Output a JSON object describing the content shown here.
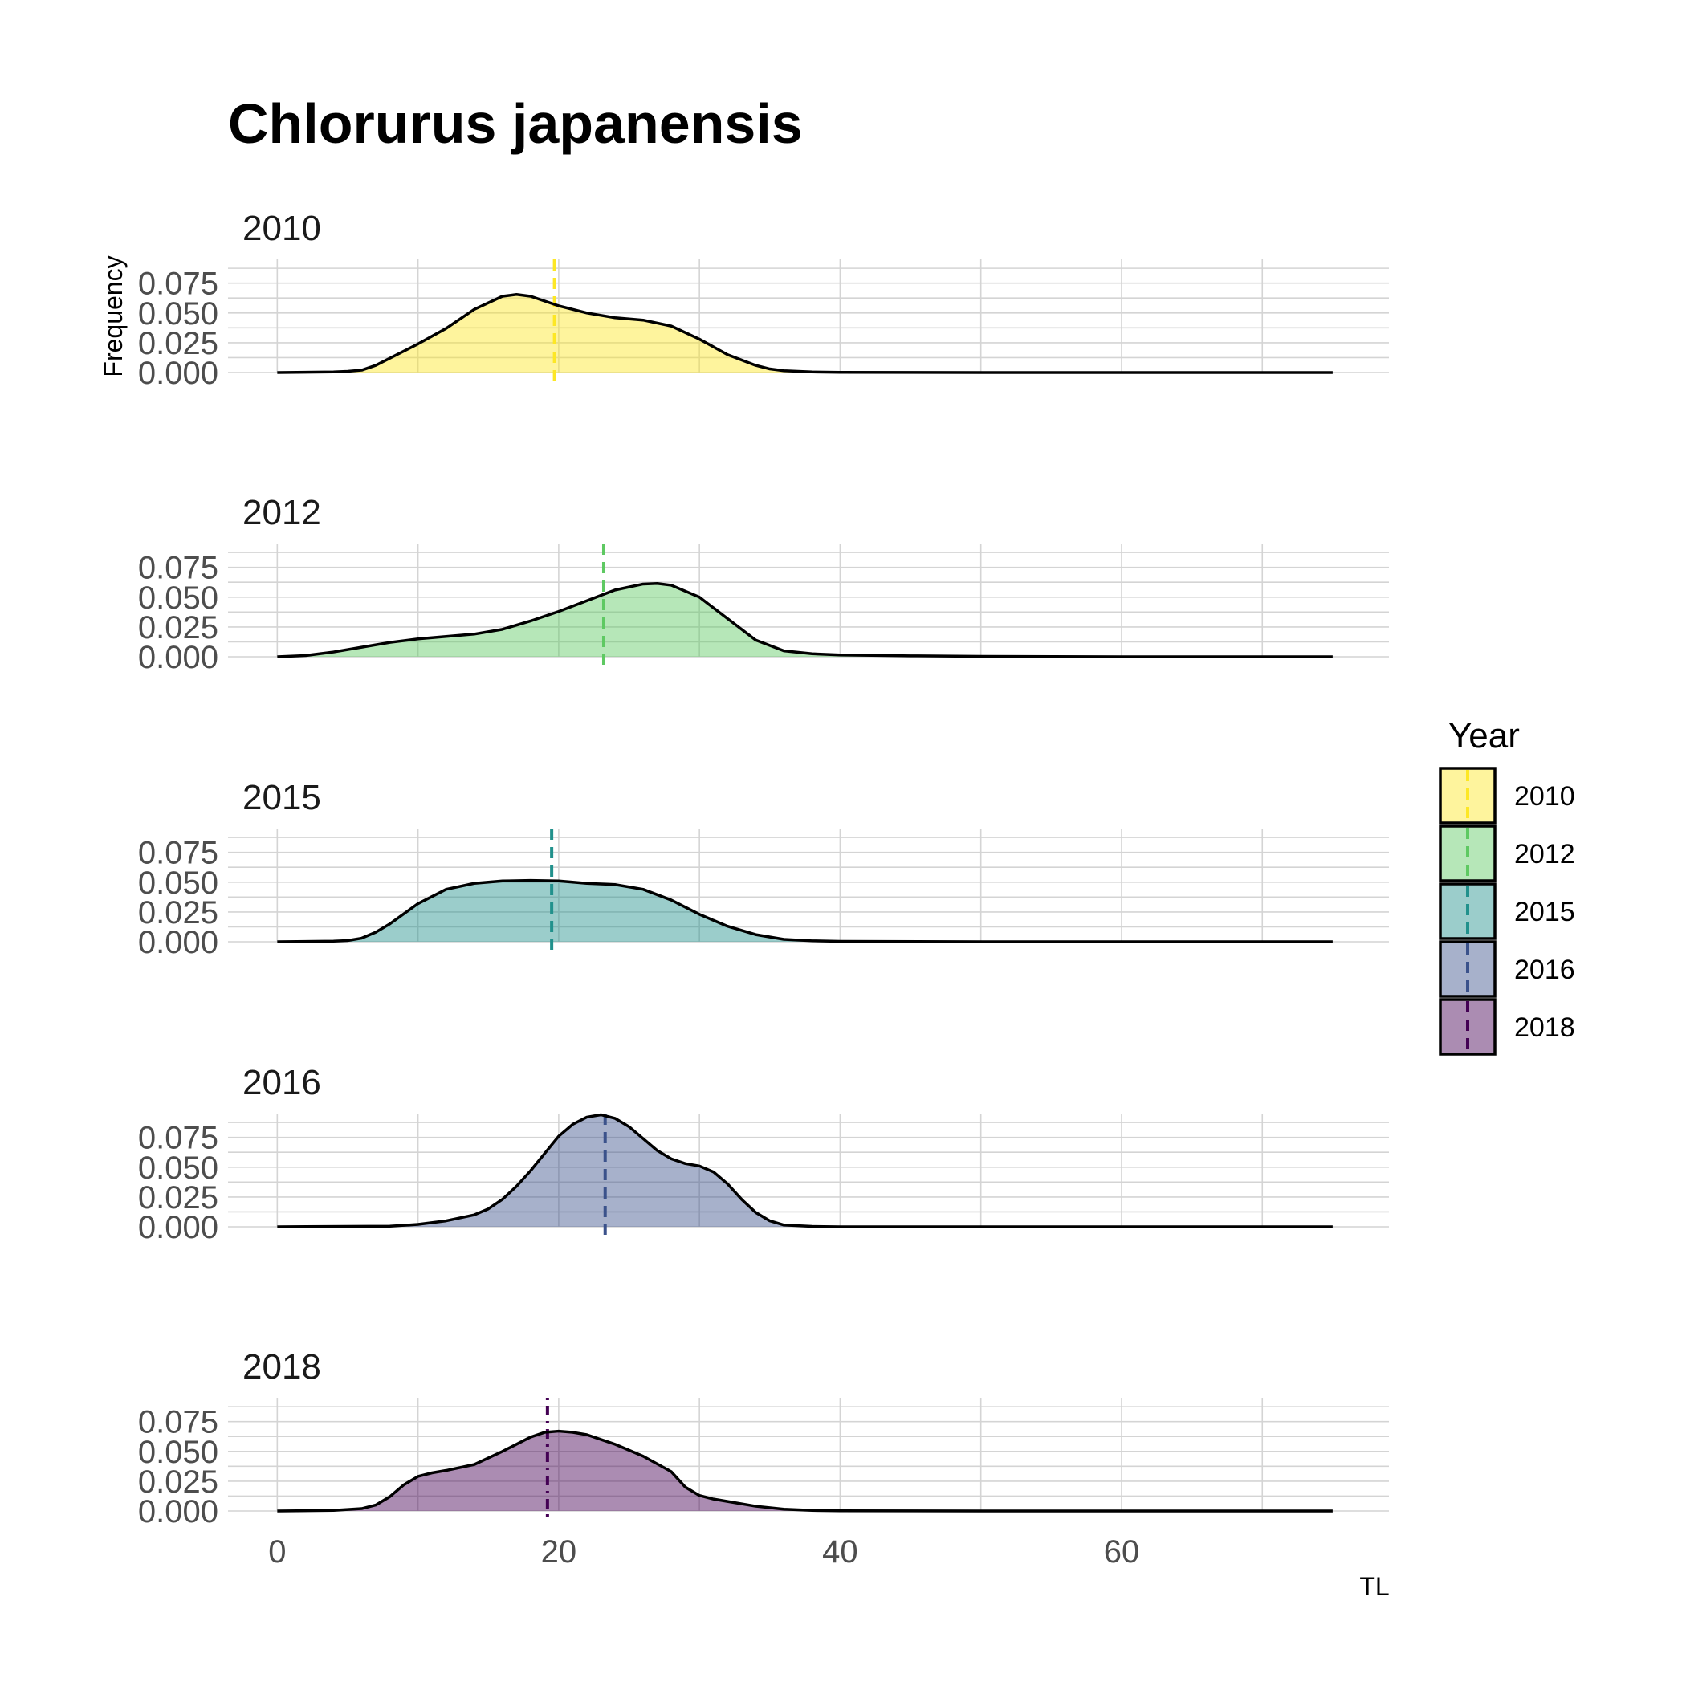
{
  "chart_data": {
    "type": "area",
    "title": "Chlorurus japanensis",
    "xlabel": "TL",
    "ylabel": "Frequency",
    "xlim": [
      -3.5,
      79
    ],
    "ylim": [
      0,
      0.095
    ],
    "x_ticks": [
      0,
      20,
      40,
      60
    ],
    "x_minor": [
      10,
      30,
      50,
      70
    ],
    "y_ticks": [
      0.0,
      0.025,
      0.05,
      0.075
    ],
    "y_tick_labels": [
      "0.000",
      "0.025",
      "0.050",
      "0.075"
    ],
    "grid": true,
    "facets": [
      {
        "label": "2010",
        "color": "#FDE725",
        "mean": 19.7,
        "mean_dash": "dashed",
        "x": [
          0,
          4,
          5,
          6,
          7,
          8,
          10,
          12,
          14,
          16,
          17,
          18,
          20,
          22,
          24,
          26,
          28,
          30,
          32,
          34,
          35,
          36,
          38,
          40,
          50,
          60,
          70,
          75
        ],
        "y": [
          0,
          0.0005,
          0.001,
          0.002,
          0.006,
          0.012,
          0.024,
          0.037,
          0.053,
          0.064,
          0.0655,
          0.064,
          0.056,
          0.05,
          0.046,
          0.044,
          0.039,
          0.028,
          0.015,
          0.006,
          0.003,
          0.0015,
          0.0005,
          0.0002,
          0,
          0,
          0,
          0
        ]
      },
      {
        "label": "2012",
        "color": "#5EC962",
        "mean": 23.2,
        "mean_dash": "dashed",
        "x": [
          0,
          2,
          4,
          6,
          8,
          10,
          12,
          14,
          16,
          18,
          20,
          22,
          24,
          26,
          27,
          28,
          30,
          32,
          34,
          36,
          38,
          40,
          45,
          50,
          60,
          70,
          75
        ],
        "y": [
          0,
          0.001,
          0.004,
          0.008,
          0.012,
          0.015,
          0.017,
          0.019,
          0.023,
          0.03,
          0.038,
          0.047,
          0.056,
          0.061,
          0.0615,
          0.06,
          0.05,
          0.032,
          0.014,
          0.005,
          0.0025,
          0.0015,
          0.0008,
          0.0003,
          0,
          0,
          0
        ]
      },
      {
        "label": "2015",
        "color": "#21918C",
        "mean": 19.5,
        "mean_dash": "dashed",
        "x": [
          0,
          4,
          5,
          6,
          7,
          8,
          10,
          12,
          14,
          16,
          18,
          20,
          22,
          24,
          26,
          28,
          30,
          32,
          34,
          36,
          38,
          40,
          50,
          60,
          70,
          75
        ],
        "y": [
          0,
          0.0005,
          0.001,
          0.003,
          0.008,
          0.015,
          0.032,
          0.044,
          0.049,
          0.051,
          0.0515,
          0.051,
          0.049,
          0.048,
          0.044,
          0.035,
          0.023,
          0.013,
          0.006,
          0.002,
          0.0008,
          0.0003,
          0,
          0,
          0,
          0
        ]
      },
      {
        "label": "2016",
        "color": "#3B528B",
        "mean": 23.3,
        "mean_dash": "dashed",
        "x": [
          0,
          8,
          10,
          12,
          14,
          15,
          16,
          17,
          18,
          20,
          21,
          22,
          23,
          24,
          25,
          26,
          27,
          28,
          29,
          30,
          31,
          32,
          33,
          34,
          35,
          36,
          38,
          40,
          50,
          60,
          70,
          75
        ],
        "y": [
          0,
          0.0005,
          0.002,
          0.005,
          0.01,
          0.015,
          0.023,
          0.034,
          0.047,
          0.076,
          0.086,
          0.092,
          0.094,
          0.091,
          0.084,
          0.074,
          0.064,
          0.057,
          0.053,
          0.051,
          0.046,
          0.036,
          0.023,
          0.012,
          0.005,
          0.0015,
          0.0003,
          0,
          0,
          0,
          0,
          0
        ]
      },
      {
        "label": "2018",
        "color": "#440154",
        "mean": 19.2,
        "mean_dash": "dotdash",
        "x": [
          0,
          4,
          6,
          7,
          8,
          9,
          10,
          11,
          12,
          14,
          16,
          18,
          19,
          20,
          21,
          22,
          24,
          26,
          28,
          29,
          30,
          31,
          32,
          34,
          36,
          38,
          40,
          50,
          60,
          70,
          75
        ],
        "y": [
          0,
          0.0005,
          0.002,
          0.005,
          0.012,
          0.022,
          0.029,
          0.032,
          0.034,
          0.039,
          0.05,
          0.062,
          0.066,
          0.067,
          0.066,
          0.064,
          0.056,
          0.046,
          0.033,
          0.02,
          0.013,
          0.01,
          0.008,
          0.004,
          0.0015,
          0.0005,
          0.0002,
          0,
          0,
          0,
          0
        ]
      }
    ],
    "legend": {
      "title": "Year",
      "position": "right",
      "items": [
        {
          "label": "2010",
          "color": "#FDE725"
        },
        {
          "label": "2012",
          "color": "#5EC962"
        },
        {
          "label": "2015",
          "color": "#21918C"
        },
        {
          "label": "2016",
          "color": "#3B528B"
        },
        {
          "label": "2018",
          "color": "#440154"
        }
      ]
    }
  }
}
